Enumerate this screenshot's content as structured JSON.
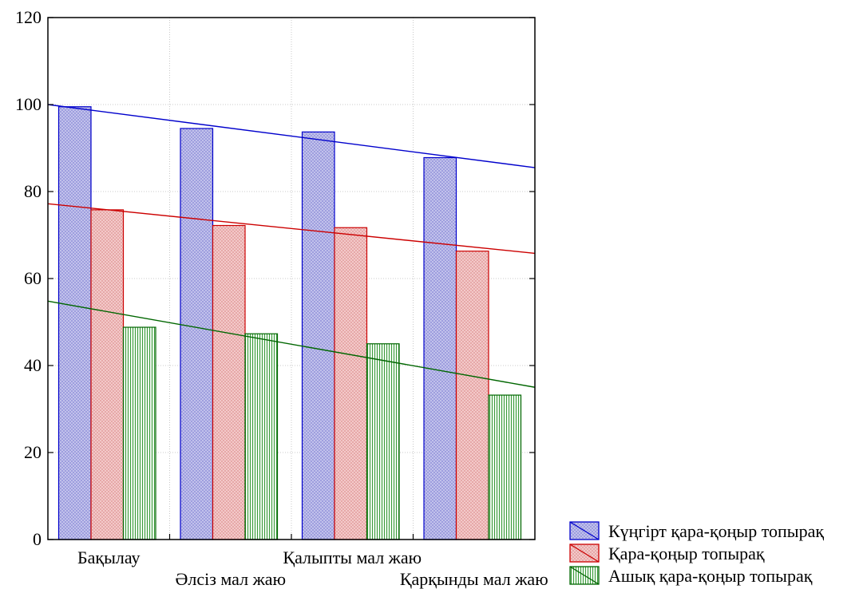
{
  "chart_data": {
    "type": "bar",
    "title": "",
    "xlabel": "",
    "ylabel": "",
    "ylim": [
      0,
      120
    ],
    "yticks": [
      0,
      20,
      40,
      60,
      80,
      100,
      120
    ],
    "grid": true,
    "legend_position": "bottom-right",
    "categories": [
      "Бақылау",
      "Әлсіз мал жаю",
      "Қалыпты мал жаю",
      "Қарқынды мал жаю"
    ],
    "series": [
      {
        "name": "Күңгірт қара-қоңыр топырақ",
        "color": "#0000cc",
        "fill": "#c6c6ec",
        "pattern": "crosshatch",
        "values": [
          99.5,
          94.5,
          93.7,
          87.8
        ],
        "trend": [
          100,
          85.5
        ]
      },
      {
        "name": "Қара-қоңыр топырақ",
        "color": "#cc0000",
        "fill": "#f4cccc",
        "pattern": "crosshatch",
        "values": [
          75.8,
          72.2,
          71.7,
          66.3
        ],
        "trend": [
          77.2,
          65.8
        ]
      },
      {
        "name": "Ашық қара-қоңыр топырақ",
        "color": "#006600",
        "fill": "#d6ecd6",
        "pattern": "vertical-lines",
        "values": [
          48.8,
          47.3,
          45.0,
          33.2
        ],
        "trend": [
          54.8,
          35.0
        ]
      }
    ]
  }
}
